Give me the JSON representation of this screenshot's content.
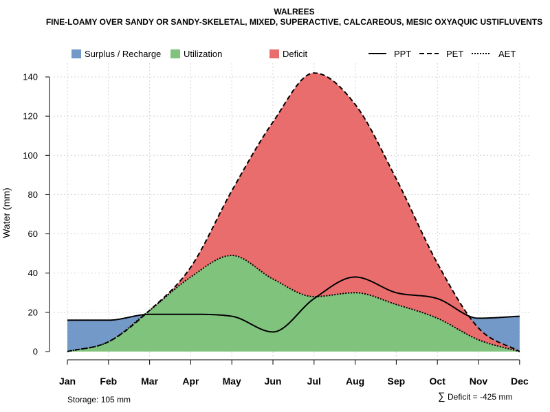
{
  "chart_data": {
    "type": "area",
    "title": "WALREES",
    "subtitle": "FINE-LOAMY OVER SANDY OR SANDY-SKELETAL, MIXED, SUPERACTIVE, CALCAREOUS, MESIC OXYAQUIC USTIFLUVENTS",
    "ylabel": "Water (mm)",
    "xlabel": "",
    "ylim": [
      0,
      147
    ],
    "yticks": [
      0,
      20,
      40,
      60,
      80,
      100,
      120,
      140
    ],
    "grid": true,
    "legend_position": "top",
    "categories": [
      "Jan",
      "Feb",
      "Mar",
      "Apr",
      "May",
      "Jun",
      "Jul",
      "Aug",
      "Sep",
      "Oct",
      "Nov",
      "Dec"
    ],
    "series": [
      {
        "name": "PPT",
        "style": "solid",
        "values": [
          16,
          16,
          19,
          19,
          18,
          10,
          27,
          38,
          30,
          27,
          17,
          18
        ]
      },
      {
        "name": "PET",
        "style": "dashed",
        "values": [
          0,
          5,
          21,
          43,
          82,
          117,
          142,
          126,
          88,
          45,
          12,
          0
        ]
      },
      {
        "name": "AET",
        "style": "dotted",
        "values": [
          0,
          5,
          21,
          38,
          49,
          37,
          28,
          30,
          24,
          17,
          6,
          0
        ]
      }
    ],
    "fills": [
      {
        "name": "Surplus / Recharge",
        "color": "#7399C8"
      },
      {
        "name": "Utilization",
        "color": "#80C37D"
      },
      {
        "name": "Deficit",
        "color": "#EA6D6D"
      }
    ],
    "legend": {
      "surplus": "Surplus / Recharge",
      "utilization": "Utilization",
      "deficit": "Deficit",
      "ppt": "PPT",
      "pet": "PET",
      "aet": "AET"
    },
    "annotations": {
      "storage": "Storage: 105 mm",
      "deficit_symbol": "∑",
      "deficit_total": "Deficit = -425 mm"
    }
  }
}
